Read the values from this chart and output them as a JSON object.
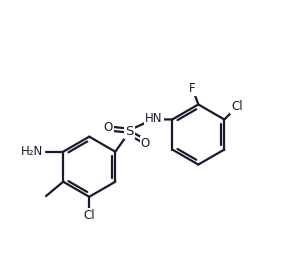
{
  "bg_color": "#ffffff",
  "line_color": "#1a1a2e",
  "line_width": 1.6,
  "font_size": 8.5,
  "fig_width": 2.93,
  "fig_height": 2.59,
  "dpi": 100,
  "xlim": [
    0,
    10
  ],
  "ylim": [
    0,
    9
  ]
}
